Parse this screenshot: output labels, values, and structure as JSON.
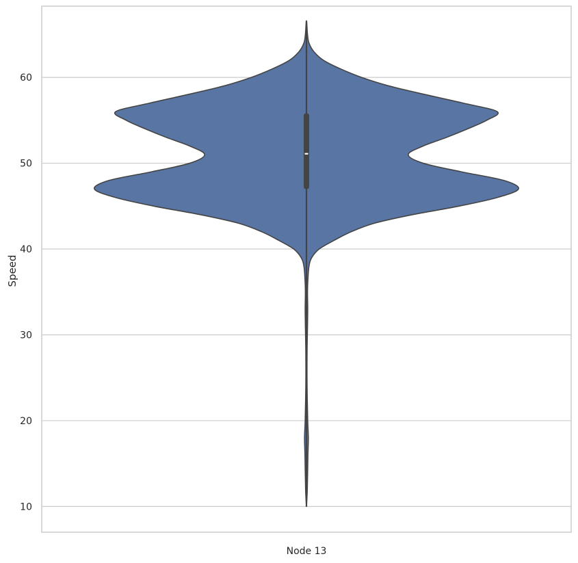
{
  "chart_data": {
    "type": "violin",
    "title": "",
    "xlabel": "",
    "ylabel": "Speed",
    "categories": [
      "Node 13"
    ],
    "ylim": [
      7,
      68.3
    ],
    "yticks": [
      10,
      20,
      30,
      40,
      50,
      60
    ],
    "grid": {
      "y": true,
      "x": false
    },
    "colors": {
      "body": "#5875a4",
      "edge": "#444444",
      "box": "#444444",
      "median": "#ffffff",
      "grid": "#cccccc",
      "frame": "#cccccc"
    },
    "summary": {
      "min": 10,
      "q1": 47,
      "median": 51.1,
      "q3": 55.8,
      "max": 66.6
    },
    "density_profile": [
      {
        "speed": 10,
        "halfwidth": 0
      },
      {
        "speed": 12,
        "halfwidth": 0.004
      },
      {
        "speed": 16,
        "halfwidth": 0.007
      },
      {
        "speed": 18,
        "halfwidth": 0.009
      },
      {
        "speed": 20,
        "halfwidth": 0.006
      },
      {
        "speed": 24,
        "halfwidth": 0.003
      },
      {
        "speed": 28,
        "halfwidth": 0.003
      },
      {
        "speed": 31,
        "halfwidth": 0.005
      },
      {
        "speed": 33,
        "halfwidth": 0.006
      },
      {
        "speed": 35,
        "halfwidth": 0.005
      },
      {
        "speed": 36.5,
        "halfwidth": 0.007
      },
      {
        "speed": 38,
        "halfwidth": 0.012
      },
      {
        "speed": 39,
        "halfwidth": 0.025
      },
      {
        "speed": 40,
        "halfwidth": 0.06
      },
      {
        "speed": 41,
        "halfwidth": 0.13
      },
      {
        "speed": 42,
        "halfwidth": 0.21
      },
      {
        "speed": 43,
        "halfwidth": 0.32
      },
      {
        "speed": 44,
        "halfwidth": 0.5
      },
      {
        "speed": 45,
        "halfwidth": 0.72
      },
      {
        "speed": 46,
        "halfwidth": 0.9
      },
      {
        "speed": 47,
        "halfwidth": 1.0
      },
      {
        "speed": 48,
        "halfwidth": 0.93
      },
      {
        "speed": 49,
        "halfwidth": 0.73
      },
      {
        "speed": 50,
        "halfwidth": 0.55
      },
      {
        "speed": 51,
        "halfwidth": 0.48
      },
      {
        "speed": 52,
        "halfwidth": 0.55
      },
      {
        "speed": 53,
        "halfwidth": 0.66
      },
      {
        "speed": 54,
        "halfwidth": 0.76
      },
      {
        "speed": 55,
        "halfwidth": 0.85
      },
      {
        "speed": 56,
        "halfwidth": 0.9
      },
      {
        "speed": 57,
        "halfwidth": 0.74
      },
      {
        "speed": 58,
        "halfwidth": 0.56
      },
      {
        "speed": 59,
        "halfwidth": 0.39
      },
      {
        "speed": 60,
        "halfwidth": 0.26
      },
      {
        "speed": 61,
        "halfwidth": 0.16
      },
      {
        "speed": 62,
        "halfwidth": 0.08
      },
      {
        "speed": 63,
        "halfwidth": 0.035
      },
      {
        "speed": 64,
        "halfwidth": 0.012
      },
      {
        "speed": 65,
        "halfwidth": 0.005
      },
      {
        "speed": 66.6,
        "halfwidth": 0
      }
    ]
  }
}
